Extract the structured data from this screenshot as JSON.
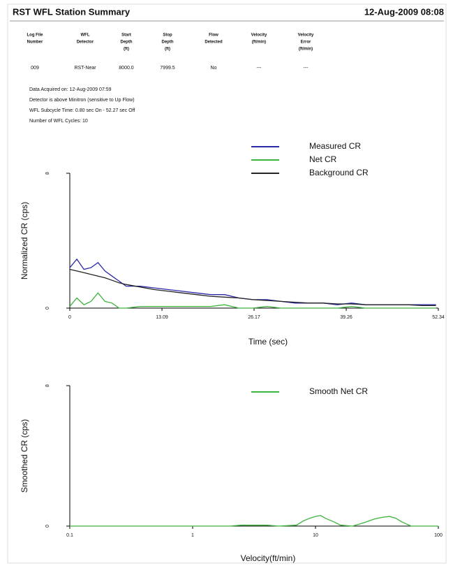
{
  "header": {
    "title": "RST WFL Station Summary",
    "date": "12-Aug-2009 08:08"
  },
  "table": {
    "columns": [
      [
        "Log File",
        "Number"
      ],
      [
        "WFL",
        "Detector"
      ],
      [
        "Start",
        "Depth",
        "(ft)"
      ],
      [
        "Stop",
        "Depth",
        "(ft)"
      ],
      [
        "Flow",
        "Detected"
      ],
      [
        "Velocity",
        "(ft/min)"
      ],
      [
        "Velocity",
        "Error",
        "(ft/min)"
      ]
    ],
    "rows": [
      [
        "009",
        "RST-Near",
        "8000.0",
        "7999.5",
        "No",
        "---",
        "---"
      ]
    ]
  },
  "notes": [
    "Data Acquired on: 12-Aug-2009 07:59",
    "Detector is above Minitron (sensitive to Up Flow)",
    "WFL Subcycle Time: 0.80 sec On - 52.27 sec Off",
    "Number of WFL Cycles: 10"
  ],
  "chart_data": [
    {
      "type": "line",
      "xlabel": "Time (sec)",
      "ylabel": "Normalized CR (cps)",
      "x": [
        0,
        1,
        2,
        3,
        4,
        5,
        6,
        7,
        8,
        10,
        12,
        14,
        16,
        18,
        20,
        22,
        24,
        26,
        28,
        30,
        32,
        34,
        36,
        38,
        40,
        42,
        44,
        46,
        48,
        50,
        52
      ],
      "series": [
        {
          "name": "Measured CR",
          "color": "#2a2aa8",
          "values": [
            2.4,
            2.9,
            2.3,
            2.4,
            2.7,
            2.2,
            1.9,
            1.6,
            1.3,
            1.3,
            1.2,
            1.1,
            1.0,
            0.9,
            0.8,
            0.8,
            0.6,
            0.5,
            0.5,
            0.4,
            0.3,
            0.3,
            0.3,
            0.2,
            0.3,
            0.2,
            0.2,
            0.2,
            0.2,
            0.2,
            0.2
          ]
        },
        {
          "name": "Net CR",
          "color": "#3cb43c",
          "values": [
            0.1,
            0.6,
            0.2,
            0.4,
            0.9,
            0.4,
            0.3,
            0,
            0,
            0.1,
            0.1,
            0.1,
            0.1,
            0.1,
            0.1,
            0.2,
            0,
            0,
            0.1,
            0,
            0,
            0,
            0,
            0,
            0.1,
            0,
            0,
            0,
            0,
            0,
            0
          ]
        },
        {
          "name": "Background CR",
          "color": "#222222",
          "values": [
            2.3,
            2.2,
            2.1,
            2.0,
            1.9,
            1.8,
            1.65,
            1.5,
            1.4,
            1.25,
            1.1,
            1.0,
            0.9,
            0.8,
            0.7,
            0.65,
            0.6,
            0.5,
            0.45,
            0.4,
            0.35,
            0.3,
            0.3,
            0.25,
            0.25,
            0.2,
            0.2,
            0.2,
            0.2,
            0.15,
            0.15
          ]
        }
      ],
      "xlim": [
        0,
        52.34
      ],
      "xticks": [
        0,
        13.09,
        26.17,
        39.26,
        52.34
      ],
      "ylim": [
        0,
        8
      ],
      "yticks": [
        0,
        8
      ]
    },
    {
      "type": "line",
      "xlabel": "Velocity(ft/min)",
      "ylabel": "Smoothed CR (cps)",
      "xscale": "log",
      "x": [
        0.1,
        0.5,
        1,
        2,
        2.5,
        3,
        4,
        5,
        7,
        8,
        9,
        10,
        11,
        12,
        14,
        16,
        20,
        25,
        30,
        35,
        40,
        45,
        50,
        60,
        100
      ],
      "series": [
        {
          "name": "Smooth Net CR",
          "color": "#3cb43c",
          "values": [
            0,
            0,
            0,
            0,
            0.05,
            0.05,
            0.05,
            0,
            0.05,
            0.3,
            0.45,
            0.55,
            0.6,
            0.45,
            0.25,
            0.05,
            0,
            0.2,
            0.4,
            0.5,
            0.55,
            0.45,
            0.25,
            0,
            0
          ]
        }
      ],
      "xlim": [
        0.1,
        100
      ],
      "xticks": [
        0.1,
        1,
        10,
        100
      ],
      "ylim": [
        0,
        8
      ],
      "yticks": [
        0,
        8
      ]
    }
  ]
}
